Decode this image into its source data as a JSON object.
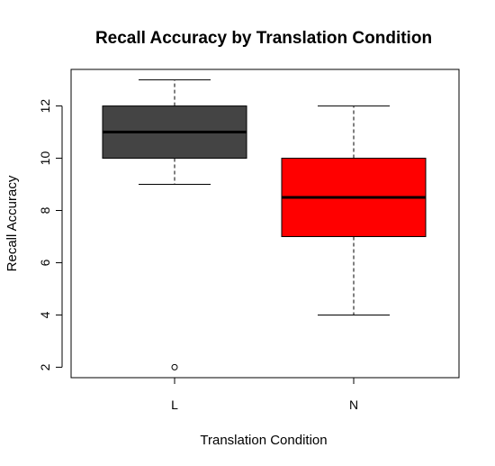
{
  "chart_data": {
    "type": "boxplot",
    "title": "Recall Accuracy by Translation Condition",
    "xlabel": "Translation Condition",
    "ylabel": "Recall Accuracy",
    "categories": [
      "L",
      "N"
    ],
    "y_ticks": [
      2,
      4,
      6,
      8,
      10,
      12
    ],
    "ylim": [
      1.6,
      13.4
    ],
    "boxes": [
      {
        "category": "L",
        "whisker_low": 9,
        "q1": 10,
        "median": 11,
        "q3": 12,
        "whisker_high": 13,
        "outliers": [
          2
        ],
        "color": "#444444"
      },
      {
        "category": "N",
        "whisker_low": 4,
        "q1": 7,
        "median": 8.5,
        "q3": 10,
        "whisker_high": 12,
        "outliers": [],
        "color": "#ff0000"
      }
    ],
    "grid": false,
    "legend": "none"
  }
}
